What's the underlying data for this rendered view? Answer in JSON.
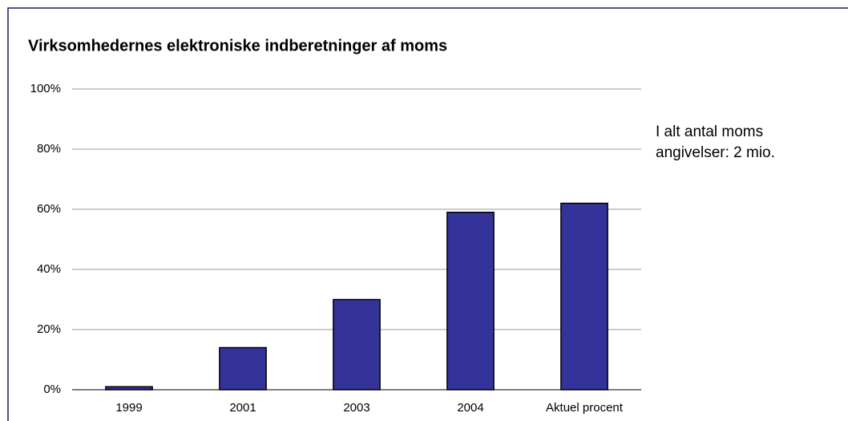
{
  "chart_data": {
    "type": "bar",
    "title": "Virksomhedernes elektroniske indberetninger af moms",
    "annotation": [
      "I alt antal moms",
      "angivelser: 2 mio."
    ],
    "categories": [
      "1999",
      "2001",
      "2003",
      "2004",
      "Aktuel procent"
    ],
    "values": [
      1,
      14,
      30,
      59,
      62
    ],
    "color": "#333399",
    "ylim": [
      0,
      100
    ],
    "yticks": [
      {
        "value": 0,
        "label": "0%"
      },
      {
        "value": 20,
        "label": "20%"
      },
      {
        "value": 40,
        "label": "40%"
      },
      {
        "value": 60,
        "label": "60%"
      },
      {
        "value": 80,
        "label": "80%"
      },
      {
        "value": 100,
        "label": "100%"
      }
    ],
    "grid": true
  }
}
